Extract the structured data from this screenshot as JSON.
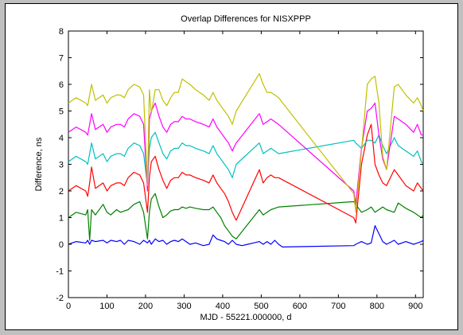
{
  "chart_data": {
    "type": "line",
    "title": "Overlap Differences for NISXPPP",
    "xlabel": "MJD - 55221.000000, d",
    "ylabel": "Difference, ns",
    "xlim": [
      0,
      920
    ],
    "ylim": [
      -2,
      8
    ],
    "xticks": [
      0,
      100,
      200,
      300,
      400,
      500,
      600,
      700,
      800,
      900
    ],
    "yticks": [
      -2,
      -1,
      0,
      1,
      2,
      3,
      4,
      5,
      6,
      7,
      8
    ],
    "grid": false,
    "series": [
      {
        "color": "#0000ff",
        "x": [
          0,
          20,
          45,
          50,
          55,
          60,
          70,
          90,
          100,
          110,
          125,
          135,
          145,
          155,
          170,
          185,
          195,
          205,
          210,
          215,
          225,
          235,
          245,
          255,
          265,
          275,
          285,
          295,
          305,
          315,
          330,
          350,
          365,
          375,
          385,
          395,
          405,
          415,
          425,
          435,
          450,
          465,
          480,
          495,
          505,
          515,
          525,
          535,
          545,
          555,
          740,
          745,
          760,
          775,
          785,
          795,
          805,
          815,
          825,
          845,
          855,
          875,
          895,
          905,
          915,
          920
        ],
        "y": [
          0.0,
          0.1,
          0.05,
          0.15,
          0.0,
          0.15,
          0.1,
          0.15,
          0.05,
          0.15,
          0.1,
          0.15,
          0.0,
          0.15,
          0.1,
          0.0,
          0.15,
          0.05,
          0.15,
          0.0,
          0.2,
          0.1,
          0.15,
          0.0,
          0.1,
          0.15,
          0.1,
          0.2,
          0.1,
          0.0,
          0.05,
          -0.05,
          0.0,
          0.35,
          0.2,
          0.15,
          0.1,
          0.0,
          0.15,
          0.0,
          -0.05,
          0.0,
          0.05,
          0.1,
          0.0,
          0.1,
          0.0,
          0.15,
          0.0,
          -0.1,
          -0.05,
          0.0,
          0.1,
          0.0,
          0.05,
          0.7,
          0.4,
          0.1,
          0.0,
          0.15,
          0.0,
          0.1,
          0.0,
          0.05,
          0.1,
          0.15
        ]
      },
      {
        "color": "#008000",
        "x": [
          0,
          20,
          45,
          50,
          55,
          60,
          70,
          90,
          100,
          110,
          125,
          135,
          145,
          155,
          170,
          185,
          195,
          205,
          210,
          215,
          225,
          235,
          245,
          255,
          265,
          275,
          285,
          295,
          305,
          315,
          330,
          350,
          365,
          375,
          385,
          395,
          405,
          415,
          425,
          435,
          495,
          505,
          515,
          525,
          535,
          545,
          740,
          745,
          760,
          775,
          785,
          795,
          805,
          815,
          825,
          845,
          855,
          875,
          895,
          905,
          915,
          920
        ],
        "y": [
          1.0,
          1.2,
          1.1,
          1.3,
          0.15,
          1.3,
          1.1,
          1.5,
          1.2,
          1.1,
          1.3,
          1.2,
          1.25,
          1.3,
          1.5,
          1.6,
          1.2,
          0.2,
          1.2,
          1.7,
          1.9,
          1.4,
          1.0,
          1.1,
          1.25,
          1.3,
          1.3,
          1.4,
          1.35,
          1.4,
          1.35,
          1.3,
          1.3,
          1.4,
          1.2,
          1.0,
          0.7,
          0.5,
          0.3,
          0.2,
          1.3,
          1.1,
          1.2,
          1.3,
          1.35,
          1.4,
          1.6,
          1.5,
          1.2,
          1.3,
          1.4,
          1.2,
          1.3,
          1.4,
          1.3,
          1.2,
          1.55,
          1.35,
          1.2,
          1.1,
          1.0,
          1.1
        ]
      },
      {
        "color": "#ff0000",
        "x": [
          0,
          20,
          45,
          50,
          55,
          60,
          70,
          90,
          100,
          110,
          125,
          135,
          145,
          155,
          170,
          185,
          195,
          205,
          210,
          215,
          225,
          235,
          245,
          255,
          265,
          275,
          285,
          295,
          305,
          315,
          330,
          350,
          365,
          375,
          385,
          395,
          405,
          415,
          425,
          435,
          495,
          505,
          515,
          525,
          535,
          545,
          740,
          745,
          760,
          775,
          785,
          795,
          805,
          815,
          825,
          845,
          855,
          875,
          895,
          905,
          915,
          920
        ],
        "y": [
          2.0,
          2.2,
          2.0,
          1.8,
          2.3,
          2.9,
          2.1,
          2.3,
          2.0,
          2.2,
          2.3,
          2.3,
          2.2,
          2.5,
          2.7,
          2.6,
          2.3,
          1.2,
          2.5,
          3.1,
          3.3,
          2.8,
          2.4,
          2.1,
          2.4,
          2.5,
          2.5,
          2.7,
          2.6,
          2.6,
          2.5,
          2.4,
          2.3,
          2.6,
          2.3,
          2.1,
          1.9,
          1.6,
          1.2,
          0.9,
          2.8,
          2.3,
          2.5,
          2.6,
          2.5,
          2.5,
          1.0,
          0.8,
          3.0,
          4.1,
          4.5,
          3.0,
          2.6,
          2.3,
          2.2,
          2.8,
          2.6,
          2.2,
          2.0,
          2.3,
          2.1,
          2.0
        ]
      },
      {
        "color": "#00c0c0",
        "x": [
          0,
          20,
          45,
          50,
          55,
          60,
          70,
          90,
          100,
          110,
          125,
          135,
          145,
          155,
          170,
          185,
          195,
          205,
          210,
          215,
          225,
          235,
          245,
          255,
          265,
          275,
          285,
          295,
          305,
          315,
          330,
          350,
          365,
          375,
          385,
          395,
          405,
          415,
          425,
          435,
          495,
          505,
          515,
          525,
          535,
          545,
          740,
          745,
          760,
          775,
          785,
          795,
          805,
          815,
          825,
          845,
          855,
          875,
          895,
          905,
          915,
          920
        ],
        "y": [
          3.1,
          3.3,
          3.1,
          3.0,
          3.4,
          3.8,
          3.2,
          3.4,
          3.1,
          3.3,
          3.4,
          3.4,
          3.3,
          3.6,
          3.8,
          3.7,
          3.4,
          2.2,
          3.6,
          4.0,
          4.2,
          3.8,
          3.4,
          3.2,
          3.5,
          3.6,
          3.6,
          3.8,
          3.7,
          3.7,
          3.6,
          3.5,
          3.4,
          3.7,
          3.4,
          3.2,
          3.0,
          2.8,
          2.5,
          3.0,
          3.8,
          3.4,
          3.5,
          3.6,
          3.5,
          3.4,
          3.9,
          3.8,
          3.6,
          3.9,
          3.9,
          3.8,
          4.1,
          3.7,
          3.4,
          4.0,
          3.7,
          3.5,
          3.3,
          3.5,
          3.1,
          3.0
        ]
      },
      {
        "color": "#ff00ff",
        "x": [
          0,
          20,
          45,
          50,
          55,
          60,
          70,
          90,
          100,
          110,
          125,
          135,
          145,
          155,
          170,
          185,
          195,
          205,
          210,
          215,
          225,
          235,
          245,
          255,
          265,
          275,
          285,
          295,
          305,
          315,
          330,
          350,
          365,
          375,
          385,
          395,
          405,
          415,
          425,
          435,
          495,
          505,
          515,
          525,
          535,
          545,
          740,
          745,
          760,
          775,
          785,
          795,
          805,
          815,
          825,
          845,
          855,
          875,
          895,
          905,
          915,
          920
        ],
        "y": [
          4.2,
          4.4,
          4.2,
          4.1,
          4.5,
          4.9,
          4.3,
          4.5,
          4.2,
          4.4,
          4.5,
          4.5,
          4.4,
          4.7,
          4.9,
          4.8,
          4.5,
          2.0,
          4.7,
          5.0,
          5.3,
          4.8,
          4.4,
          4.2,
          4.5,
          4.6,
          4.6,
          4.8,
          4.7,
          4.7,
          4.6,
          4.5,
          4.4,
          4.7,
          4.4,
          4.2,
          4.0,
          3.8,
          3.5,
          3.8,
          4.9,
          4.5,
          4.6,
          4.7,
          4.6,
          4.5,
          2.0,
          1.5,
          3.6,
          5.0,
          5.1,
          5.3,
          4.1,
          3.2,
          2.8,
          4.8,
          4.7,
          4.5,
          4.2,
          4.5,
          4.1,
          4.1
        ]
      },
      {
        "color": "#c0c000",
        "x": [
          0,
          20,
          45,
          50,
          55,
          60,
          70,
          90,
          100,
          110,
          125,
          135,
          145,
          155,
          170,
          185,
          195,
          205,
          210,
          215,
          225,
          235,
          245,
          255,
          265,
          275,
          285,
          295,
          305,
          315,
          330,
          350,
          365,
          375,
          385,
          395,
          405,
          415,
          425,
          435,
          495,
          505,
          515,
          525,
          535,
          545,
          740,
          745,
          760,
          775,
          785,
          795,
          805,
          815,
          825,
          845,
          855,
          875,
          895,
          905,
          915,
          920
        ],
        "y": [
          5.3,
          5.5,
          5.3,
          5.2,
          5.6,
          6.0,
          5.4,
          5.6,
          5.3,
          5.5,
          5.6,
          5.6,
          5.5,
          5.8,
          6.0,
          5.9,
          5.6,
          2.2,
          5.8,
          4.9,
          5.8,
          5.8,
          5.4,
          5.2,
          5.5,
          5.7,
          5.7,
          6.2,
          6.1,
          6.0,
          5.8,
          5.6,
          5.4,
          5.7,
          5.4,
          5.2,
          5.0,
          4.8,
          4.5,
          5.0,
          6.4,
          6.0,
          5.7,
          5.7,
          5.6,
          5.5,
          1.9,
          1.2,
          3.5,
          6.0,
          6.2,
          6.3,
          5.3,
          3.3,
          2.8,
          5.9,
          6.0,
          5.6,
          5.3,
          5.5,
          5.2,
          5.0
        ]
      }
    ]
  }
}
